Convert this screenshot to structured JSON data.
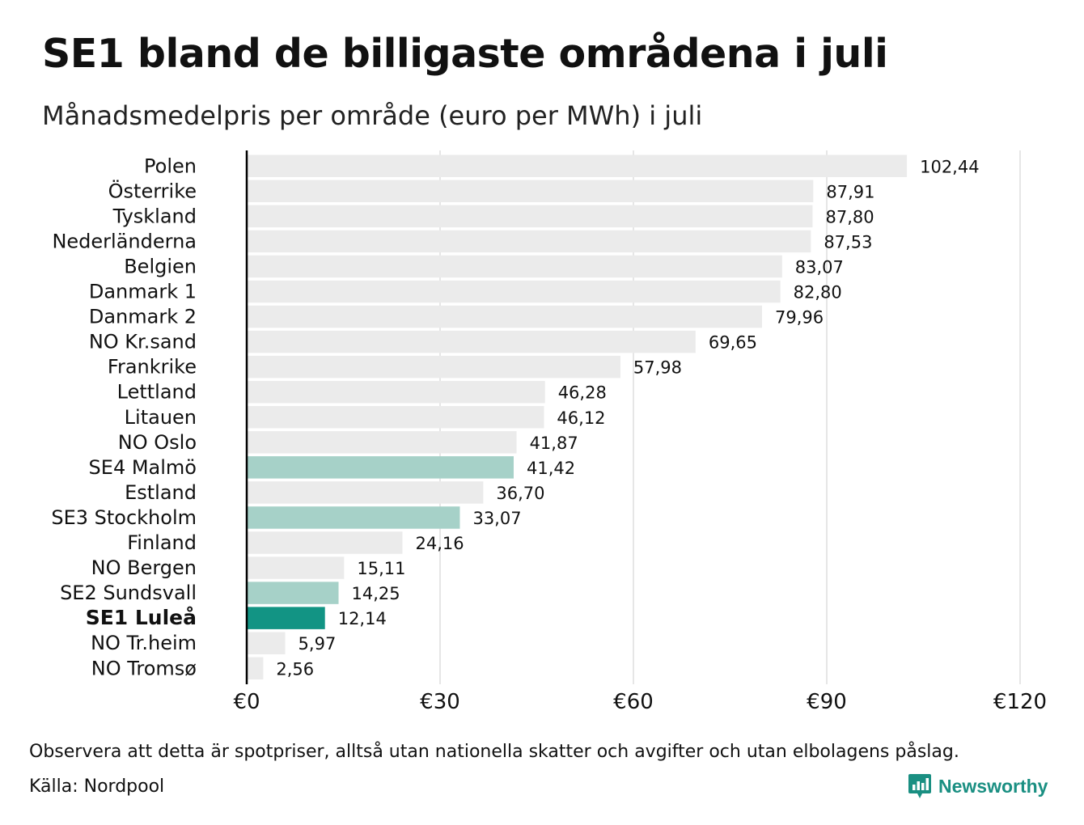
{
  "title": "SE1 bland de billigaste områdena i juli",
  "subtitle": "Månadsmedelpris per område (euro per MWh) i juli",
  "note": "Observera att detta är spotpriser, alltså utan nationella skatter och avgifter och utan elbolagens påslag.",
  "source": "Källa: Nordpool",
  "brand": "Newsworthy",
  "colors": {
    "default_bar": "#ebebeb",
    "se_bar": "#a6d1c8",
    "highlight_bar": "#129484",
    "brand": "#1a8f82",
    "gridline": "#cccccc",
    "baseline": "#000000"
  },
  "chart_data": {
    "type": "bar",
    "orientation": "horizontal",
    "categories": [
      "Polen",
      "Österrike",
      "Tyskland",
      "Nederländerna",
      "Belgien",
      "Danmark  1",
      "Danmark  2",
      "NO Kr.sand",
      "Frankrike",
      "Lettland",
      "Litauen",
      "NO Oslo",
      "SE4  Malmö",
      "Estland",
      "SE3  Stockholm",
      "Finland",
      "NO Bergen",
      "SE2  Sundsvall",
      "SE1 Luleå",
      "NO Tr.heim",
      "NO Tromsø"
    ],
    "values": [
      102.44,
      87.91,
      87.8,
      87.53,
      83.07,
      82.8,
      79.96,
      69.65,
      57.98,
      46.28,
      46.12,
      41.87,
      41.42,
      36.7,
      33.07,
      24.16,
      15.11,
      14.25,
      12.14,
      5.97,
      2.56
    ],
    "value_labels": [
      "102,44",
      "87,91",
      "87,80",
      "87,53",
      "83,07",
      "82,80",
      "79,96",
      "69,65",
      "57,98",
      "46,28",
      "46,12",
      "41,87",
      "41,42",
      "36,70",
      "33,07",
      "24,16",
      "15,11",
      "14,25",
      "12,14",
      "5,97",
      "2,56"
    ],
    "bar_groups": [
      "other",
      "other",
      "other",
      "other",
      "other",
      "other",
      "other",
      "other",
      "other",
      "other",
      "other",
      "other",
      "se",
      "other",
      "se",
      "other",
      "other",
      "se",
      "highlight",
      "other",
      "other"
    ],
    "xlim": [
      0,
      120
    ],
    "xticks": [
      0,
      30,
      60,
      90,
      120
    ],
    "xtick_labels": [
      "€0",
      "€30",
      "€60",
      "€90",
      "€120"
    ],
    "grid": true,
    "legend": "none"
  }
}
